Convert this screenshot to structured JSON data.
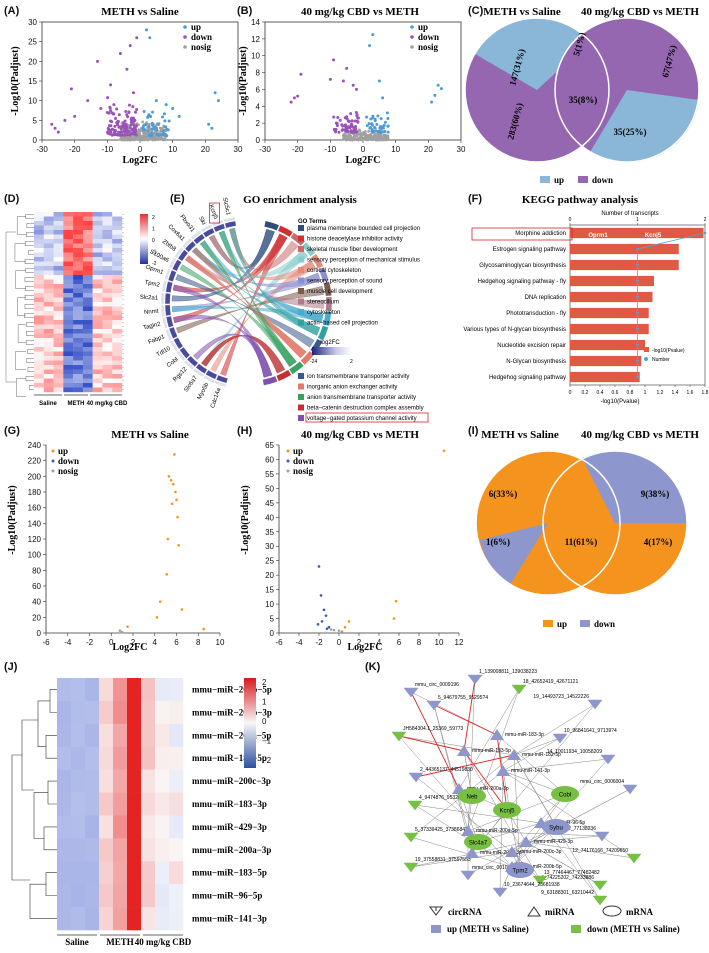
{
  "colors": {
    "up": "#4a9bd8",
    "down": "#9b52b8",
    "nosig": "#a0a0a0",
    "venn_up": "#8ab6d8",
    "venn_down": "#9467b0",
    "orange": "#f5931f",
    "blue_down": "#8d97cd",
    "bar": "#e05945",
    "node_up": "#8e96cc",
    "node_down": "#77c043",
    "edge_red": "#e02a2a",
    "edge_gray": "#888888"
  },
  "panelA": {
    "label": "(A)",
    "title": "METH vs Saline",
    "ylabel": "-Log10(Padjust)",
    "xlabel": "Log2FC",
    "xticks": [
      "-30",
      "-20",
      "-10",
      "0",
      "10",
      "20",
      "30"
    ],
    "yticks": [
      "0",
      "5",
      "10",
      "15",
      "20",
      "25",
      "30"
    ],
    "legend": [
      "up",
      "down",
      "nosig"
    ]
  },
  "panelB": {
    "label": "(B)",
    "title": "40 mg/kg CBD vs METH",
    "ylabel": "-Log10(Padjust)",
    "xlabel": "Log2FC",
    "xticks": [
      "-30",
      "-20",
      "-10",
      "0",
      "10",
      "20",
      "30"
    ],
    "yticks": [
      "0",
      "2",
      "4",
      "6",
      "8",
      "10",
      "12",
      "14"
    ],
    "legend": [
      "up",
      "down",
      "nosig"
    ]
  },
  "panelC": {
    "label": "(C)",
    "left_title": "METH vs Saline",
    "right_title": "40 mg/kg CBD vs METH",
    "labels": [
      "147(31%)",
      "5(1%)",
      "67(47%)",
      "283(60%)",
      "35(8%)",
      "35(25%)"
    ],
    "legend": [
      "up",
      "down"
    ]
  },
  "panelD": {
    "label": "(D)",
    "groups": [
      "Saline",
      "METH",
      "40 mg/kg CBD"
    ],
    "scale": [
      "2",
      "1",
      "0",
      "-1",
      "-2"
    ]
  },
  "panelE": {
    "label": "(E)",
    "title": "GO enrichment analysis",
    "terms_title": "GO Terms",
    "genes": [
      "Cdc14a",
      "Myo5b",
      "Slc6a7",
      "Rgs12",
      "Cobl",
      "Tdl10",
      "Fabp1",
      "Tagln2",
      "Nnmt",
      "Slc2a1",
      "Tpm2",
      "Oprm1",
      "S100a6",
      "Zbtb8",
      "Cox6a1",
      "Fbxo31",
      "Ski",
      "Kcnj5",
      "Slc5c1"
    ],
    "terms": [
      "plasma membrane bounded cell projection",
      "histone deacetylase inhibitor activity",
      "skeletal muscle fiber development",
      "sensory perception of mechanical stimulus",
      "cortical cytoskeleton",
      "sensory perception of sound",
      "muscle cell development",
      "stereocilium",
      "cytoskeleton",
      "actin−based cell projection",
      "ion transmembrane transporter activity",
      "inorganic anion exchanger activity",
      "anion transmembrane transporter activity",
      "beta−catenin destruction complex assembly",
      "voltage−gated potassium channel activity"
    ],
    "term_colors": [
      "#2e4d7f",
      "#d03030",
      "#cc6a6a",
      "#88cccc",
      "#e28b7a",
      "#8a8fd0",
      "#7a5a4a",
      "#b07a8a",
      "#4aaccc",
      "#30a0a0",
      "#3a5a8a",
      "#e07a6a",
      "#3aa060",
      "#c03030",
      "#8050b0"
    ],
    "scale_title": "log2FC",
    "scale_ticks": [
      "-24",
      "2"
    ]
  },
  "panelF": {
    "label": "(F)",
    "title": "KEGG pathway analysis",
    "top_axis": "Number of transcripts",
    "top_ticks": [
      "0",
      "1",
      "2"
    ],
    "xlabel": "-log10(Pvalue)",
    "xticks": [
      "0",
      "0.2",
      "0.4",
      "0.6",
      "0.8",
      "1",
      "1.2",
      "1.4",
      "1.6",
      "1.8"
    ],
    "pathways": [
      "Morphine addiction",
      "Estrogen signaling pathway",
      "Glycosaminoglycan biosynthesis",
      "Hedgehog signaling pathway - fly",
      "DNA replication",
      "Phototransduction - fly",
      "Various types of N-glycan biosynthesis",
      "Nucleotide excision repair",
      "N-Glycan biosynthesis",
      "Hedgehog signaling pathway"
    ],
    "values": [
      1.78,
      1.45,
      1.45,
      1.12,
      1.1,
      1.05,
      1.05,
      1.0,
      0.95,
      0.93
    ],
    "numbers": [
      2,
      1,
      1,
      1,
      1,
      1,
      1,
      1,
      1,
      1
    ],
    "genes": [
      "Oprm1",
      "Kcnj5"
    ],
    "legend": [
      "-log10(Pvalue)",
      "Number"
    ]
  },
  "panelG": {
    "label": "(G)",
    "title": "METH vs Saline",
    "ylabel": "-Log10(Padjust)",
    "xlabel": "Log2FC",
    "xticks": [
      "-6",
      "-4",
      "-2",
      "0",
      "2",
      "4",
      "6",
      "8",
      "10"
    ],
    "yticks": [
      "0",
      "20",
      "40",
      "60",
      "80",
      "100",
      "120",
      "140",
      "160",
      "180",
      "200",
      "220",
      "240"
    ],
    "legend": [
      "up",
      "down",
      "nosig"
    ]
  },
  "panelH": {
    "label": "(H)",
    "title": "40 mg/kg CBD vs METH",
    "ylabel": "-Log10(Padjust)",
    "xlabel": "Log2FC",
    "xticks": [
      "-6",
      "-4",
      "-2",
      "0",
      "2",
      "4",
      "6",
      "8",
      "10",
      "12"
    ],
    "yticks": [
      "0",
      "5",
      "10",
      "15",
      "20",
      "25",
      "30",
      "35",
      "40",
      "45",
      "50",
      "55",
      "60",
      "65"
    ],
    "legend": [
      "up",
      "down",
      "nosig"
    ]
  },
  "panelI": {
    "label": "(I)",
    "left_title": "METH vs Saline",
    "right_title": "40 mg/kg CBD vs METH",
    "labels": [
      "6(33%)",
      "9(38%)",
      "1(6%)",
      "11(61%)",
      "4(17%)"
    ],
    "legend": [
      "up",
      "down"
    ]
  },
  "panelJ": {
    "label": "(J)",
    "rows": [
      "mmu−miR−200b−5p",
      "mmu−miR−200b−3p",
      "mmu−miR−200a−5p",
      "mmu−miR−182−5p",
      "mmu−miR−200c−3p",
      "mmu−miR−183−3p",
      "mmu−miR−429−3p",
      "mmu−miR−200a−3p",
      "mmu−miR−183−5p",
      "mmu−miR−96−5p",
      "mmu−miR−141−3p"
    ],
    "groups": [
      "Saline",
      "METH",
      "40 mg/kg CBD"
    ],
    "scale": [
      "2",
      "1",
      "0",
      "−1",
      "−2"
    ]
  },
  "panelK": {
    "label": "(K)",
    "legend": {
      "circ": "circRNA",
      "mi": "miRNA",
      "m": "mRNA",
      "up": "up (METH vs Saline)",
      "down": "down (METH vs Saline)"
    },
    "circ_labels": [
      "1_139008811_139038223",
      "mmu_circ_0009196",
      "18_42652419_42671121",
      "19_14493723_14522226",
      "5_94679755_95295?4",
      "JH584304.1_25369_59773",
      "10_96841641_97139?4",
      "2_44365137_44519830",
      "14_10011934_10058209",
      "4_94748?6_95320?5",
      "mmu_circ_0006004",
      "5_37339425_37386847",
      "9_77045612_77138236",
      "19_37558831_37597553",
      "12_74176166_74209650",
      "mmu_circ_0010105",
      "4_74225202_74233886",
      "13_77464467_77482482",
      "10_23674644_23681938",
      "9_63188301_63210442"
    ],
    "mi_labels": [
      "mmu-miR-183-3p",
      "mmu-miR-183-5p",
      "mmu-miR-182-5p",
      "mmu-miR-200a-3p",
      "mmu-miR-141-3p",
      "mmu-miR-200a-5p",
      "mmu-miR-96-5p",
      "mmu-miR-429-3p",
      "mmu-miR-200b-3p",
      "mmu-miR-200c-3p",
      "mmu-miR-200b-5p"
    ],
    "m_labels": [
      "Neb",
      "Kcnj5",
      "Cobl",
      "Slc4a7",
      "Sybu",
      "Tpm2"
    ]
  }
}
